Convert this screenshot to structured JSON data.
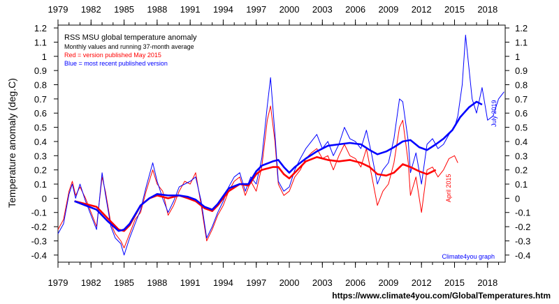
{
  "chart_data": {
    "type": "line",
    "title": "RSS MSU global temperature anomaly",
    "subtitle": "Monthly values and running 37-month average",
    "ylabel": "Temperature anomaly (deg.C)",
    "xlim": [
      1979,
      2019.6
    ],
    "ylim": [
      -0.45,
      1.22
    ],
    "x_ticks": [
      "1979",
      "1982",
      "1985",
      "1988",
      "1991",
      "1994",
      "1997",
      "2000",
      "2003",
      "2006",
      "2009",
      "2012",
      "2015",
      "2018"
    ],
    "y_ticks": [
      "-0.4",
      "-0.3",
      "-0.2",
      "-0.1",
      "0",
      "0.1",
      "0.2",
      "0.3",
      "0.4",
      "0.5",
      "0.6",
      "0.7",
      "0.8",
      "0.9",
      "1",
      "1.1",
      "1.2"
    ],
    "legend": [
      {
        "text": "Red = version published May 2015",
        "color": "#ff0000"
      },
      {
        "text": "Blue = most recent published version",
        "color": "#0000ff"
      }
    ],
    "annotations": {
      "red_end": "April 2015",
      "blue_end": "July 2019",
      "credit": "Climate4you graph",
      "url": "https://www.climate4you.com/GlobalTemperatures.htm"
    },
    "series": [
      {
        "name": "Red = version published May 2015",
        "color": "#ff0000",
        "kind": "monthly",
        "points": [
          [
            1979.0,
            -0.22
          ],
          [
            1979.5,
            -0.15
          ],
          [
            1980.0,
            0.05
          ],
          [
            1980.3,
            0.12
          ],
          [
            1980.6,
            0.02
          ],
          [
            1981.0,
            0.08
          ],
          [
            1981.5,
            0.0
          ],
          [
            1982.0,
            -0.1
          ],
          [
            1982.5,
            -0.2
          ],
          [
            1983.0,
            0.15
          ],
          [
            1983.3,
            0.05
          ],
          [
            1983.8,
            -0.18
          ],
          [
            1984.2,
            -0.25
          ],
          [
            1984.7,
            -0.3
          ],
          [
            1985.0,
            -0.35
          ],
          [
            1985.5,
            -0.25
          ],
          [
            1986.0,
            -0.15
          ],
          [
            1986.5,
            -0.1
          ],
          [
            1987.0,
            0.05
          ],
          [
            1987.6,
            0.2
          ],
          [
            1988.0,
            0.1
          ],
          [
            1988.5,
            0.05
          ],
          [
            1989.0,
            -0.12
          ],
          [
            1989.5,
            -0.05
          ],
          [
            1990.0,
            0.05
          ],
          [
            1990.5,
            0.12
          ],
          [
            1991.0,
            0.1
          ],
          [
            1991.5,
            0.18
          ],
          [
            1992.0,
            -0.05
          ],
          [
            1992.5,
            -0.3
          ],
          [
            1993.0,
            -0.22
          ],
          [
            1993.5,
            -0.12
          ],
          [
            1994.0,
            -0.05
          ],
          [
            1994.5,
            0.05
          ],
          [
            1995.0,
            0.12
          ],
          [
            1995.5,
            0.15
          ],
          [
            1996.0,
            0.02
          ],
          [
            1996.5,
            0.12
          ],
          [
            1997.0,
            0.05
          ],
          [
            1997.5,
            0.22
          ],
          [
            1998.0,
            0.55
          ],
          [
            1998.3,
            0.65
          ],
          [
            1998.7,
            0.4
          ],
          [
            1999.0,
            0.1
          ],
          [
            1999.5,
            0.02
          ],
          [
            2000.0,
            0.05
          ],
          [
            2000.5,
            0.15
          ],
          [
            2001.0,
            0.2
          ],
          [
            2001.5,
            0.28
          ],
          [
            2002.0,
            0.32
          ],
          [
            2002.5,
            0.35
          ],
          [
            2003.0,
            0.28
          ],
          [
            2003.5,
            0.3
          ],
          [
            2004.0,
            0.2
          ],
          [
            2004.5,
            0.3
          ],
          [
            2005.0,
            0.38
          ],
          [
            2005.5,
            0.3
          ],
          [
            2006.0,
            0.28
          ],
          [
            2006.5,
            0.22
          ],
          [
            2007.0,
            0.35
          ],
          [
            2007.5,
            0.15
          ],
          [
            2008.0,
            -0.05
          ],
          [
            2008.5,
            0.05
          ],
          [
            2009.0,
            0.1
          ],
          [
            2009.5,
            0.25
          ],
          [
            2010.0,
            0.5
          ],
          [
            2010.3,
            0.55
          ],
          [
            2010.8,
            0.25
          ],
          [
            2011.0,
            0.02
          ],
          [
            2011.5,
            0.15
          ],
          [
            2012.0,
            -0.1
          ],
          [
            2012.5,
            0.2
          ],
          [
            2013.0,
            0.22
          ],
          [
            2013.5,
            0.15
          ],
          [
            2014.0,
            0.2
          ],
          [
            2014.5,
            0.28
          ],
          [
            2015.0,
            0.3
          ],
          [
            2015.3,
            0.25
          ]
        ]
      },
      {
        "name": "Blue = most recent published version",
        "color": "#0000ff",
        "kind": "monthly",
        "points": [
          [
            1979.0,
            -0.25
          ],
          [
            1979.5,
            -0.18
          ],
          [
            1980.0,
            0.03
          ],
          [
            1980.3,
            0.1
          ],
          [
            1980.6,
            0.0
          ],
          [
            1981.0,
            0.1
          ],
          [
            1981.5,
            -0.02
          ],
          [
            1982.0,
            -0.12
          ],
          [
            1982.5,
            -0.22
          ],
          [
            1983.0,
            0.18
          ],
          [
            1983.3,
            0.03
          ],
          [
            1983.8,
            -0.2
          ],
          [
            1984.2,
            -0.28
          ],
          [
            1984.7,
            -0.32
          ],
          [
            1985.0,
            -0.4
          ],
          [
            1985.5,
            -0.28
          ],
          [
            1986.0,
            -0.18
          ],
          [
            1986.5,
            -0.08
          ],
          [
            1987.0,
            0.08
          ],
          [
            1987.6,
            0.25
          ],
          [
            1988.0,
            0.12
          ],
          [
            1988.5,
            0.0
          ],
          [
            1989.0,
            -0.1
          ],
          [
            1989.5,
            -0.02
          ],
          [
            1990.0,
            0.08
          ],
          [
            1990.5,
            0.1
          ],
          [
            1991.0,
            0.12
          ],
          [
            1991.5,
            0.15
          ],
          [
            1992.0,
            -0.02
          ],
          [
            1992.5,
            -0.28
          ],
          [
            1993.0,
            -0.2
          ],
          [
            1993.5,
            -0.1
          ],
          [
            1994.0,
            -0.02
          ],
          [
            1994.5,
            0.08
          ],
          [
            1995.0,
            0.15
          ],
          [
            1995.5,
            0.18
          ],
          [
            1996.0,
            0.05
          ],
          [
            1996.5,
            0.15
          ],
          [
            1997.0,
            0.1
          ],
          [
            1997.5,
            0.28
          ],
          [
            1998.0,
            0.65
          ],
          [
            1998.3,
            0.85
          ],
          [
            1998.7,
            0.45
          ],
          [
            1999.0,
            0.12
          ],
          [
            1999.5,
            0.05
          ],
          [
            2000.0,
            0.08
          ],
          [
            2000.5,
            0.2
          ],
          [
            2001.0,
            0.28
          ],
          [
            2001.5,
            0.35
          ],
          [
            2002.0,
            0.4
          ],
          [
            2002.5,
            0.45
          ],
          [
            2003.0,
            0.35
          ],
          [
            2003.5,
            0.4
          ],
          [
            2004.0,
            0.3
          ],
          [
            2004.5,
            0.38
          ],
          [
            2005.0,
            0.5
          ],
          [
            2005.5,
            0.42
          ],
          [
            2006.0,
            0.4
          ],
          [
            2006.5,
            0.35
          ],
          [
            2007.0,
            0.48
          ],
          [
            2007.5,
            0.3
          ],
          [
            2008.0,
            0.1
          ],
          [
            2008.5,
            0.2
          ],
          [
            2009.0,
            0.25
          ],
          [
            2009.5,
            0.42
          ],
          [
            2010.0,
            0.7
          ],
          [
            2010.3,
            0.68
          ],
          [
            2010.8,
            0.4
          ],
          [
            2011.0,
            0.18
          ],
          [
            2011.5,
            0.32
          ],
          [
            2012.0,
            0.1
          ],
          [
            2012.5,
            0.38
          ],
          [
            2013.0,
            0.42
          ],
          [
            2013.5,
            0.35
          ],
          [
            2014.0,
            0.38
          ],
          [
            2014.5,
            0.45
          ],
          [
            2015.0,
            0.5
          ],
          [
            2015.3,
            0.58
          ],
          [
            2015.7,
            0.8
          ],
          [
            2016.0,
            1.15
          ],
          [
            2016.2,
            1.0
          ],
          [
            2016.6,
            0.7
          ],
          [
            2017.0,
            0.6
          ],
          [
            2017.5,
            0.78
          ],
          [
            2018.0,
            0.55
          ],
          [
            2018.5,
            0.58
          ],
          [
            2019.0,
            0.7
          ],
          [
            2019.5,
            0.75
          ]
        ]
      },
      {
        "name": "Red running 37-month average",
        "color": "#ff0000",
        "kind": "average",
        "points": [
          [
            1980.5,
            -0.02
          ],
          [
            1981.5,
            -0.04
          ],
          [
            1982.5,
            -0.06
          ],
          [
            1983.5,
            -0.14
          ],
          [
            1984.5,
            -0.22
          ],
          [
            1985.0,
            -0.23
          ],
          [
            1985.5,
            -0.19
          ],
          [
            1986.5,
            -0.05
          ],
          [
            1987.3,
            0.0
          ],
          [
            1988.0,
            0.02
          ],
          [
            1989.0,
            0.0
          ],
          [
            1990.0,
            0.02
          ],
          [
            1990.8,
            0.0
          ],
          [
            1991.5,
            -0.02
          ],
          [
            1992.3,
            -0.07
          ],
          [
            1993.0,
            -0.09
          ],
          [
            1993.5,
            -0.05
          ],
          [
            1994.5,
            0.05
          ],
          [
            1995.5,
            0.1
          ],
          [
            1996.3,
            0.09
          ],
          [
            1997.0,
            0.17
          ],
          [
            1997.5,
            0.2
          ],
          [
            1998.5,
            0.22
          ],
          [
            1999.0,
            0.22
          ],
          [
            1999.5,
            0.17
          ],
          [
            2000.0,
            0.14
          ],
          [
            2000.5,
            0.18
          ],
          [
            2001.5,
            0.26
          ],
          [
            2002.5,
            0.29
          ],
          [
            2003.5,
            0.27
          ],
          [
            2004.5,
            0.26
          ],
          [
            2005.5,
            0.27
          ],
          [
            2006.5,
            0.25
          ],
          [
            2007.3,
            0.22
          ],
          [
            2008.0,
            0.17
          ],
          [
            2008.8,
            0.16
          ],
          [
            2009.5,
            0.18
          ],
          [
            2010.3,
            0.24
          ],
          [
            2011.0,
            0.22
          ],
          [
            2011.8,
            0.19
          ],
          [
            2012.5,
            0.17
          ],
          [
            2013.3,
            0.2
          ]
        ]
      },
      {
        "name": "Blue running 37-month average",
        "color": "#0000ff",
        "kind": "average",
        "points": [
          [
            1980.5,
            -0.02
          ],
          [
            1981.5,
            -0.05
          ],
          [
            1982.5,
            -0.08
          ],
          [
            1983.5,
            -0.16
          ],
          [
            1984.5,
            -0.23
          ],
          [
            1985.0,
            -0.22
          ],
          [
            1985.5,
            -0.18
          ],
          [
            1986.5,
            -0.05
          ],
          [
            1987.3,
            0.0
          ],
          [
            1988.0,
            0.03
          ],
          [
            1989.0,
            0.02
          ],
          [
            1990.0,
            0.02
          ],
          [
            1990.8,
            0.01
          ],
          [
            1991.5,
            -0.01
          ],
          [
            1992.3,
            -0.06
          ],
          [
            1993.0,
            -0.08
          ],
          [
            1993.5,
            -0.04
          ],
          [
            1994.5,
            0.07
          ],
          [
            1995.5,
            0.1
          ],
          [
            1996.3,
            0.1
          ],
          [
            1997.0,
            0.19
          ],
          [
            1997.5,
            0.23
          ],
          [
            1998.5,
            0.26
          ],
          [
            1999.0,
            0.27
          ],
          [
            1999.5,
            0.22
          ],
          [
            2000.0,
            0.18
          ],
          [
            2000.5,
            0.22
          ],
          [
            2001.5,
            0.28
          ],
          [
            2002.5,
            0.33
          ],
          [
            2003.5,
            0.37
          ],
          [
            2004.5,
            0.38
          ],
          [
            2005.5,
            0.39
          ],
          [
            2006.5,
            0.38
          ],
          [
            2007.3,
            0.34
          ],
          [
            2008.0,
            0.31
          ],
          [
            2008.8,
            0.33
          ],
          [
            2009.5,
            0.36
          ],
          [
            2010.3,
            0.4
          ],
          [
            2011.0,
            0.41
          ],
          [
            2011.8,
            0.36
          ],
          [
            2012.5,
            0.34
          ],
          [
            2013.3,
            0.38
          ],
          [
            2014.0,
            0.42
          ],
          [
            2014.8,
            0.48
          ],
          [
            2015.5,
            0.57
          ],
          [
            2016.3,
            0.64
          ],
          [
            2017.0,
            0.68
          ],
          [
            2017.5,
            0.66
          ]
        ]
      }
    ]
  }
}
